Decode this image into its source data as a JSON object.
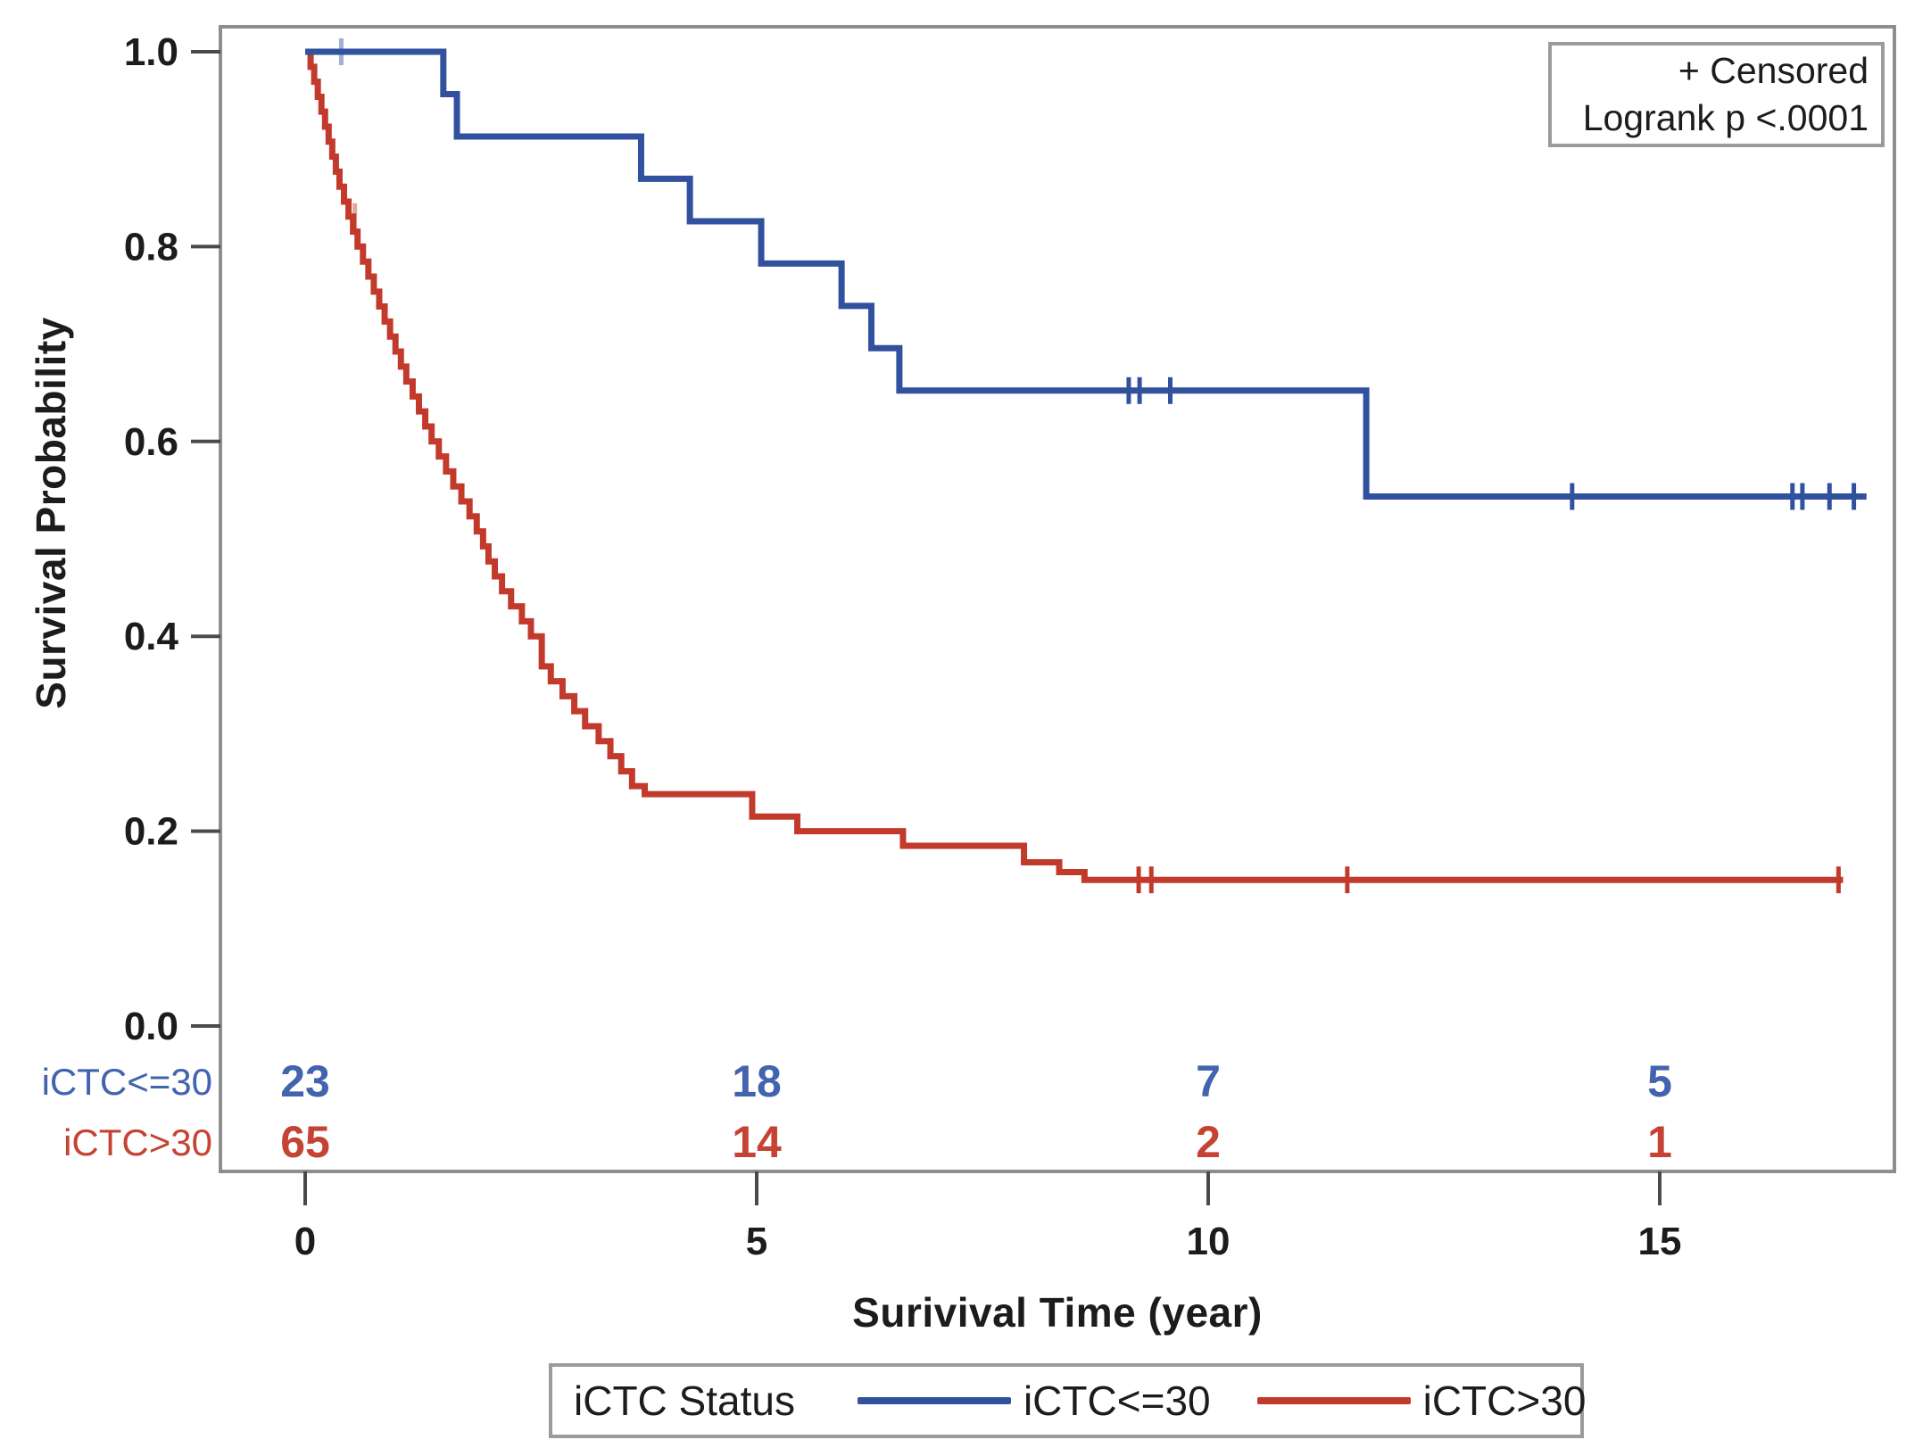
{
  "figure": {
    "annotation_box": {
      "line1": "+ Censored",
      "line2": "Logrank p <.0001"
    },
    "y_axis": {
      "title": "Survival Probability"
    },
    "x_axis": {
      "title": "Surivival Time (year)"
    },
    "legend": {
      "title": "iCTC Status",
      "entries": [
        {
          "label": "iCTC<=30",
          "color": "#31519e"
        },
        {
          "label": "iCTC>30",
          "color": "#c23a2c"
        }
      ]
    },
    "colors": {
      "blue": "#31519e",
      "red": "#c23a2c",
      "blue_text": "#4263ae",
      "red_text": "#c64334",
      "frame_gray": "#8e8e8e",
      "tick_gray": "#4a4a4a",
      "text_dark": "#1c1c1c"
    }
  },
  "chart_data": {
    "type": "line",
    "subtype": "kaplan-meier-step",
    "title": "",
    "xlabel": "Surivival Time (year)",
    "ylabel": "Survival Probability",
    "xlim": [
      -0.9,
      17.7
    ],
    "ylim": [
      -0.15,
      1.03
    ],
    "x_ticks": [
      {
        "value": 0,
        "label": "0"
      },
      {
        "value": 5,
        "label": "5"
      },
      {
        "value": 10,
        "label": "10"
      },
      {
        "value": 15,
        "label": "15"
      }
    ],
    "y_ticks": [
      {
        "value": 1.0,
        "label": "1.0"
      },
      {
        "value": 0.8,
        "label": "0.8"
      },
      {
        "value": 0.6,
        "label": "0.6"
      },
      {
        "value": 0.4,
        "label": "0.4"
      },
      {
        "value": 0.2,
        "label": "0.2"
      },
      {
        "value": 0.0,
        "label": "0.0"
      }
    ],
    "grid": false,
    "legend_position": "bottom",
    "logrank_p": "<.0001",
    "censored_marker": "+",
    "series": [
      {
        "name": "iCTC<=30",
        "color": "#31519e",
        "start": [
          0,
          1.0
        ],
        "end_time": 17.29,
        "steps": [
          [
            1.53,
            0.9565
          ],
          [
            1.68,
            0.913
          ],
          [
            3.72,
            0.8696
          ],
          [
            4.26,
            0.826
          ],
          [
            5.05,
            0.7826
          ],
          [
            5.94,
            0.7391
          ],
          [
            6.27,
            0.6957
          ],
          [
            6.58,
            0.6522
          ],
          [
            11.75,
            0.5435
          ]
        ],
        "censored": [
          [
            0.4,
            1.0,
            "faint"
          ],
          [
            9.12,
            0.6522
          ],
          [
            9.24,
            0.6522
          ],
          [
            9.58,
            0.6522
          ],
          [
            14.03,
            0.5435
          ],
          [
            16.47,
            0.5435
          ],
          [
            16.58,
            0.5435
          ],
          [
            16.88,
            0.5435
          ],
          [
            17.15,
            0.5435
          ]
        ]
      },
      {
        "name": "iCTC>30",
        "color": "#c23a2c",
        "start": [
          0,
          1.0
        ],
        "end_time": 17.03,
        "steps": [
          [
            0.06,
            0.9846
          ],
          [
            0.1,
            0.9692
          ],
          [
            0.14,
            0.9538
          ],
          [
            0.18,
            0.9385
          ],
          [
            0.22,
            0.9231
          ],
          [
            0.26,
            0.9077
          ],
          [
            0.3,
            0.8923
          ],
          [
            0.34,
            0.8769
          ],
          [
            0.38,
            0.8615
          ],
          [
            0.43,
            0.8462
          ],
          [
            0.48,
            0.8308
          ],
          [
            0.53,
            0.8154
          ],
          [
            0.58,
            0.8
          ],
          [
            0.64,
            0.7846
          ],
          [
            0.7,
            0.7692
          ],
          [
            0.76,
            0.7538
          ],
          [
            0.82,
            0.7385
          ],
          [
            0.88,
            0.7231
          ],
          [
            0.94,
            0.7077
          ],
          [
            1.0,
            0.6923
          ],
          [
            1.06,
            0.6769
          ],
          [
            1.12,
            0.6615
          ],
          [
            1.19,
            0.6462
          ],
          [
            1.26,
            0.6308
          ],
          [
            1.33,
            0.6154
          ],
          [
            1.4,
            0.6
          ],
          [
            1.48,
            0.5846
          ],
          [
            1.56,
            0.5692
          ],
          [
            1.64,
            0.5538
          ],
          [
            1.73,
            0.5385
          ],
          [
            1.82,
            0.5231
          ],
          [
            1.9,
            0.5077
          ],
          [
            1.97,
            0.4923
          ],
          [
            2.03,
            0.4769
          ],
          [
            2.1,
            0.4615
          ],
          [
            2.18,
            0.4462
          ],
          [
            2.28,
            0.4308
          ],
          [
            2.4,
            0.4154
          ],
          [
            2.5,
            0.4
          ],
          [
            2.62,
            0.3692
          ],
          [
            2.72,
            0.3538
          ],
          [
            2.85,
            0.3385
          ],
          [
            2.98,
            0.3231
          ],
          [
            3.1,
            0.3077
          ],
          [
            3.25,
            0.2923
          ],
          [
            3.38,
            0.2769
          ],
          [
            3.5,
            0.2615
          ],
          [
            3.62,
            0.2462
          ],
          [
            3.76,
            0.238
          ],
          [
            4.95,
            0.215
          ],
          [
            5.45,
            0.2
          ],
          [
            6.62,
            0.185
          ],
          [
            7.96,
            0.168
          ],
          [
            8.35,
            0.158
          ],
          [
            8.63,
            0.15
          ]
        ],
        "censored": [
          [
            0.55,
            0.8308,
            "faint"
          ],
          [
            9.23,
            0.15
          ],
          [
            9.37,
            0.15
          ],
          [
            11.54,
            0.15
          ],
          [
            16.98,
            0.15
          ]
        ]
      }
    ],
    "at_risk_table": {
      "time_points": [
        0,
        5,
        10,
        15
      ],
      "rows": [
        {
          "label": "iCTC<=30",
          "color": "#4263ae",
          "values": [
            "23",
            "18",
            "7",
            "5"
          ]
        },
        {
          "label": "iCTC>30",
          "color": "#c64334",
          "values": [
            "65",
            "14",
            "2",
            "1"
          ]
        }
      ]
    }
  }
}
